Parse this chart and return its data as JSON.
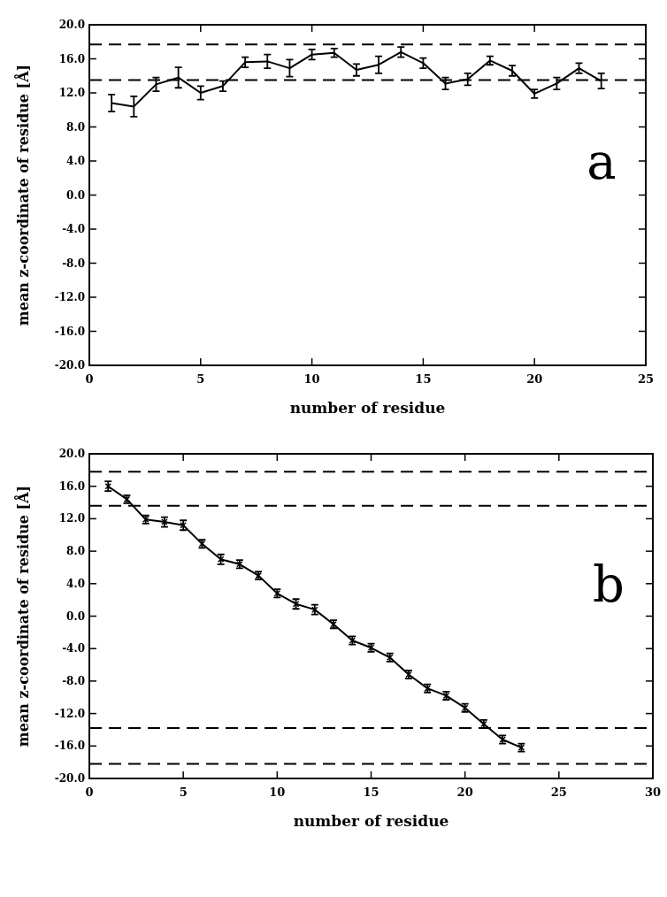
{
  "chart_data": [
    {
      "type": "line",
      "xlabel": "number of residue",
      "ylabel": "mean z-coordinate of residue [Å]",
      "annotations": [
        "a"
      ],
      "line_style": "solid",
      "grid": false,
      "x": [
        1,
        2,
        3,
        4,
        5,
        6,
        7,
        8,
        9,
        10,
        11,
        12,
        13,
        14,
        15,
        16,
        17,
        18,
        19,
        20,
        21,
        22,
        23
      ],
      "series": [
        {
          "color": "#000000",
          "values": [
            10.8,
            10.4,
            13.0,
            13.8,
            12.0,
            12.8,
            15.6,
            15.7,
            14.9,
            16.5,
            16.7,
            14.7,
            15.3,
            16.8,
            15.5,
            13.1,
            13.6,
            15.8,
            14.6,
            11.9,
            13.1,
            14.9,
            13.4
          ],
          "errors": [
            1.0,
            1.2,
            0.8,
            1.2,
            0.8,
            0.6,
            0.6,
            0.8,
            1.0,
            0.6,
            0.5,
            0.7,
            1.0,
            0.6,
            0.6,
            0.7,
            0.7,
            0.5,
            0.6,
            0.5,
            0.7,
            0.6,
            0.9
          ]
        }
      ],
      "xlim": [
        0,
        25
      ],
      "xticks": [
        0,
        5,
        10,
        15,
        20,
        25
      ],
      "ylim": [
        -20,
        20
      ],
      "yticks": [
        {
          "value": -20,
          "label": "-20.0"
        },
        {
          "value": -16,
          "label": "-16.0"
        },
        {
          "value": -12,
          "label": "-12.0"
        },
        {
          "value": -8,
          "label": "-8.0"
        },
        {
          "value": -4,
          "label": "-4.0"
        },
        {
          "value": 0,
          "label": "0.0"
        },
        {
          "value": 4,
          "label": "4.0"
        },
        {
          "value": 8,
          "label": "8.0"
        },
        {
          "value": 12,
          "label": "12.0"
        },
        {
          "value": 16,
          "label": "16.0"
        },
        {
          "value": 20,
          "label": "20.0"
        }
      ],
      "ref_lines": [
        {
          "axis": "y",
          "value": 17.7,
          "line_style": "dashed"
        },
        {
          "axis": "y",
          "value": 13.5,
          "line_style": "dashed"
        }
      ]
    },
    {
      "type": "line",
      "xlabel": "number of residue",
      "ylabel": "mean z-coordinate of residue [Å]",
      "annotations": [
        "b"
      ],
      "line_style": "solid",
      "grid": false,
      "x": [
        1,
        2,
        3,
        4,
        5,
        6,
        7,
        8,
        9,
        10,
        11,
        12,
        13,
        14,
        15,
        16,
        17,
        18,
        19,
        20,
        21,
        22,
        23
      ],
      "series": [
        {
          "color": "#000000",
          "marker": "cross",
          "values": [
            16.0,
            14.4,
            11.9,
            11.6,
            11.2,
            8.9,
            7.0,
            6.4,
            5.0,
            2.8,
            1.5,
            0.8,
            -1.0,
            -3.0,
            -3.9,
            -5.1,
            -7.2,
            -8.9,
            -9.8,
            -11.3,
            -13.3,
            -15.2,
            -16.2
          ],
          "errors": [
            0.6,
            0.5,
            0.5,
            0.6,
            0.6,
            0.5,
            0.6,
            0.5,
            0.5,
            0.5,
            0.6,
            0.6,
            0.5,
            0.5,
            0.5,
            0.5,
            0.5,
            0.5,
            0.5,
            0.5,
            0.5,
            0.5,
            0.5
          ]
        }
      ],
      "xlim": [
        0,
        30
      ],
      "xticks": [
        0,
        5,
        10,
        15,
        20,
        25,
        30
      ],
      "ylim": [
        -20,
        20
      ],
      "yticks": [
        {
          "value": -20,
          "label": "-20.0"
        },
        {
          "value": -16,
          "label": "-16.0"
        },
        {
          "value": -12,
          "label": "-12.0"
        },
        {
          "value": -8,
          "label": "-8.0"
        },
        {
          "value": -4,
          "label": "-4.0"
        },
        {
          "value": 0,
          "label": "0.0"
        },
        {
          "value": 4,
          "label": "4.0"
        },
        {
          "value": 8,
          "label": "8.0"
        },
        {
          "value": 12,
          "label": "12.0"
        },
        {
          "value": 16,
          "label": "16.0"
        },
        {
          "value": 20,
          "label": "20.0"
        }
      ],
      "ref_lines": [
        {
          "axis": "y",
          "value": 17.8,
          "line_style": "dashed"
        },
        {
          "axis": "y",
          "value": 13.6,
          "line_style": "dashed"
        },
        {
          "axis": "y",
          "value": -13.8,
          "line_style": "dashed"
        },
        {
          "axis": "y",
          "value": -18.2,
          "line_style": "dashed"
        }
      ]
    }
  ]
}
